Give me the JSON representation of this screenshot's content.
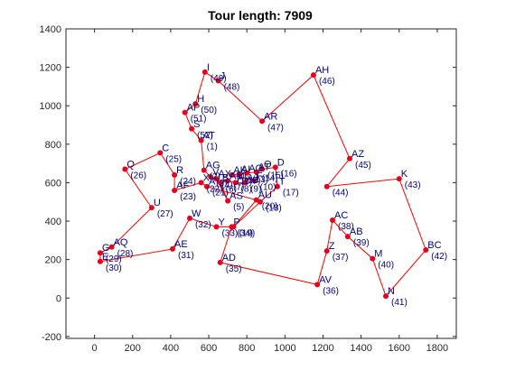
{
  "chart_data": {
    "type": "scatter",
    "title": "Tour length: 7909",
    "xlabel": "",
    "ylabel": "",
    "xlim": [
      -150,
      1900
    ],
    "ylim": [
      -210,
      1400
    ],
    "xticks": [
      "0",
      "200",
      "400",
      "600",
      "800",
      "1000",
      "1200",
      "1400",
      "1600",
      "1800"
    ],
    "xtick_values": [
      0,
      200,
      400,
      600,
      800,
      1000,
      1200,
      1400,
      1600,
      1800
    ],
    "yticks": [
      "-200",
      "0",
      "200",
      "400",
      "600",
      "800",
      "1000",
      "1200",
      "1400"
    ],
    "ytick_values": [
      -200,
      0,
      200,
      400,
      600,
      800,
      1000,
      1200,
      1400
    ],
    "grid": false,
    "colors": {
      "route": "#ff0000",
      "marker": "#e8001c",
      "label": "#00007f"
    },
    "points": [
      {
        "label": "I",
        "order": "(49)",
        "x": 580,
        "y": 1175
      },
      {
        "label": "J",
        "order": "(48)",
        "x": 650,
        "y": 1130
      },
      {
        "label": "AR",
        "order": "(47)",
        "x": 880,
        "y": 920
      },
      {
        "label": "AH",
        "order": "(46)",
        "x": 1150,
        "y": 1160
      },
      {
        "label": "AZ",
        "order": "(45)",
        "x": 1340,
        "y": 725
      },
      {
        "label": "",
        "order": "(44)",
        "x": 1220,
        "y": 580
      },
      {
        "label": "K",
        "order": "(43)",
        "x": 1600,
        "y": 620
      },
      {
        "label": "BC",
        "order": "(42)",
        "x": 1740,
        "y": 250
      },
      {
        "label": "N",
        "order": "(41)",
        "x": 1530,
        "y": 10
      },
      {
        "label": "M",
        "order": "(40)",
        "x": 1460,
        "y": 205
      },
      {
        "label": "AB",
        "order": "(39)",
        "x": 1330,
        "y": 320
      },
      {
        "label": "AC",
        "order": "(38)",
        "x": 1250,
        "y": 405
      },
      {
        "label": "Z",
        "order": "(37)",
        "x": 1220,
        "y": 245
      },
      {
        "label": "AV",
        "order": "(36)",
        "x": 1170,
        "y": 70
      },
      {
        "label": "AD",
        "order": "(35)",
        "x": 660,
        "y": 185
      },
      {
        "label": "P",
        "order": "(34)",
        "x": 720,
        "y": 370
      },
      {
        "label": "Y",
        "order": "(33)",
        "x": 640,
        "y": 370
      },
      {
        "label": "W",
        "order": "(32)",
        "x": 500,
        "y": 415
      },
      {
        "label": "AE",
        "order": "(31)",
        "x": 410,
        "y": 255
      },
      {
        "label": "E",
        "order": "(30)",
        "x": 30,
        "y": 190
      },
      {
        "label": "G",
        "order": "(29)",
        "x": 30,
        "y": 235
      },
      {
        "label": "AQ",
        "order": "(28)",
        "x": 90,
        "y": 265
      },
      {
        "label": "U",
        "order": "(27)",
        "x": 300,
        "y": 470
      },
      {
        "label": "Q",
        "order": "(26)",
        "x": 160,
        "y": 670
      },
      {
        "label": "C",
        "order": "(25)",
        "x": 345,
        "y": 755
      },
      {
        "label": "R",
        "order": "(24)",
        "x": 420,
        "y": 640
      },
      {
        "label": "AF",
        "order": "(23)",
        "x": 420,
        "y": 560
      },
      {
        "label": "X",
        "order": "(22)",
        "x": 560,
        "y": 600
      },
      {
        "label": "A",
        "order": "(21)",
        "x": 590,
        "y": 580
      },
      {
        "label": "AU",
        "order": "(20)",
        "x": 850,
        "y": 510
      },
      {
        "label": "",
        "order": "(19)",
        "x": 730,
        "y": 370
      },
      {
        "label": "",
        "order": "(18)",
        "x": 870,
        "y": 500
      },
      {
        "label": "T",
        "order": "(17)",
        "x": 960,
        "y": 580
      },
      {
        "label": "D",
        "order": "(16)",
        "x": 950,
        "y": 680
      },
      {
        "label": "O",
        "order": "(15)",
        "x": 880,
        "y": 670
      },
      {
        "label": "AT",
        "order": "(14)",
        "x": 850,
        "y": 655
      },
      {
        "label": "AO",
        "order": "(13)",
        "x": 800,
        "y": 650
      },
      {
        "label": "AI",
        "order": "(12)",
        "x": 760,
        "y": 645
      },
      {
        "label": "AK",
        "order": "(11)",
        "x": 720,
        "y": 640
      },
      {
        "label": "F",
        "order": "(10)",
        "x": 840,
        "y": 610
      },
      {
        "label": "AJ",
        "order": "(9)",
        "x": 790,
        "y": 600
      },
      {
        "label": "AL",
        "order": "(8)",
        "x": 740,
        "y": 600
      },
      {
        "label": "AM",
        "order": "(7)",
        "x": 700,
        "y": 610
      },
      {
        "label": "B",
        "order": "(6)",
        "x": 660,
        "y": 600
      },
      {
        "label": "AS",
        "order": "(5)",
        "x": 700,
        "y": 505
      },
      {
        "label": "AX",
        "order": "(4)",
        "x": 640,
        "y": 620
      },
      {
        "label": "V",
        "order": "(3)",
        "x": 610,
        "y": 630
      },
      {
        "label": "AG",
        "order": "(2)",
        "x": 575,
        "y": 665
      },
      {
        "label": "AT",
        "order": "(1)",
        "x": 560,
        "y": 820
      },
      {
        "label": "S",
        "order": "(52)",
        "x": 510,
        "y": 880
      },
      {
        "label": "AP",
        "order": "(51)",
        "x": 475,
        "y": 965
      },
      {
        "label": "H",
        "order": "(50)",
        "x": 530,
        "y": 1010
      }
    ]
  }
}
